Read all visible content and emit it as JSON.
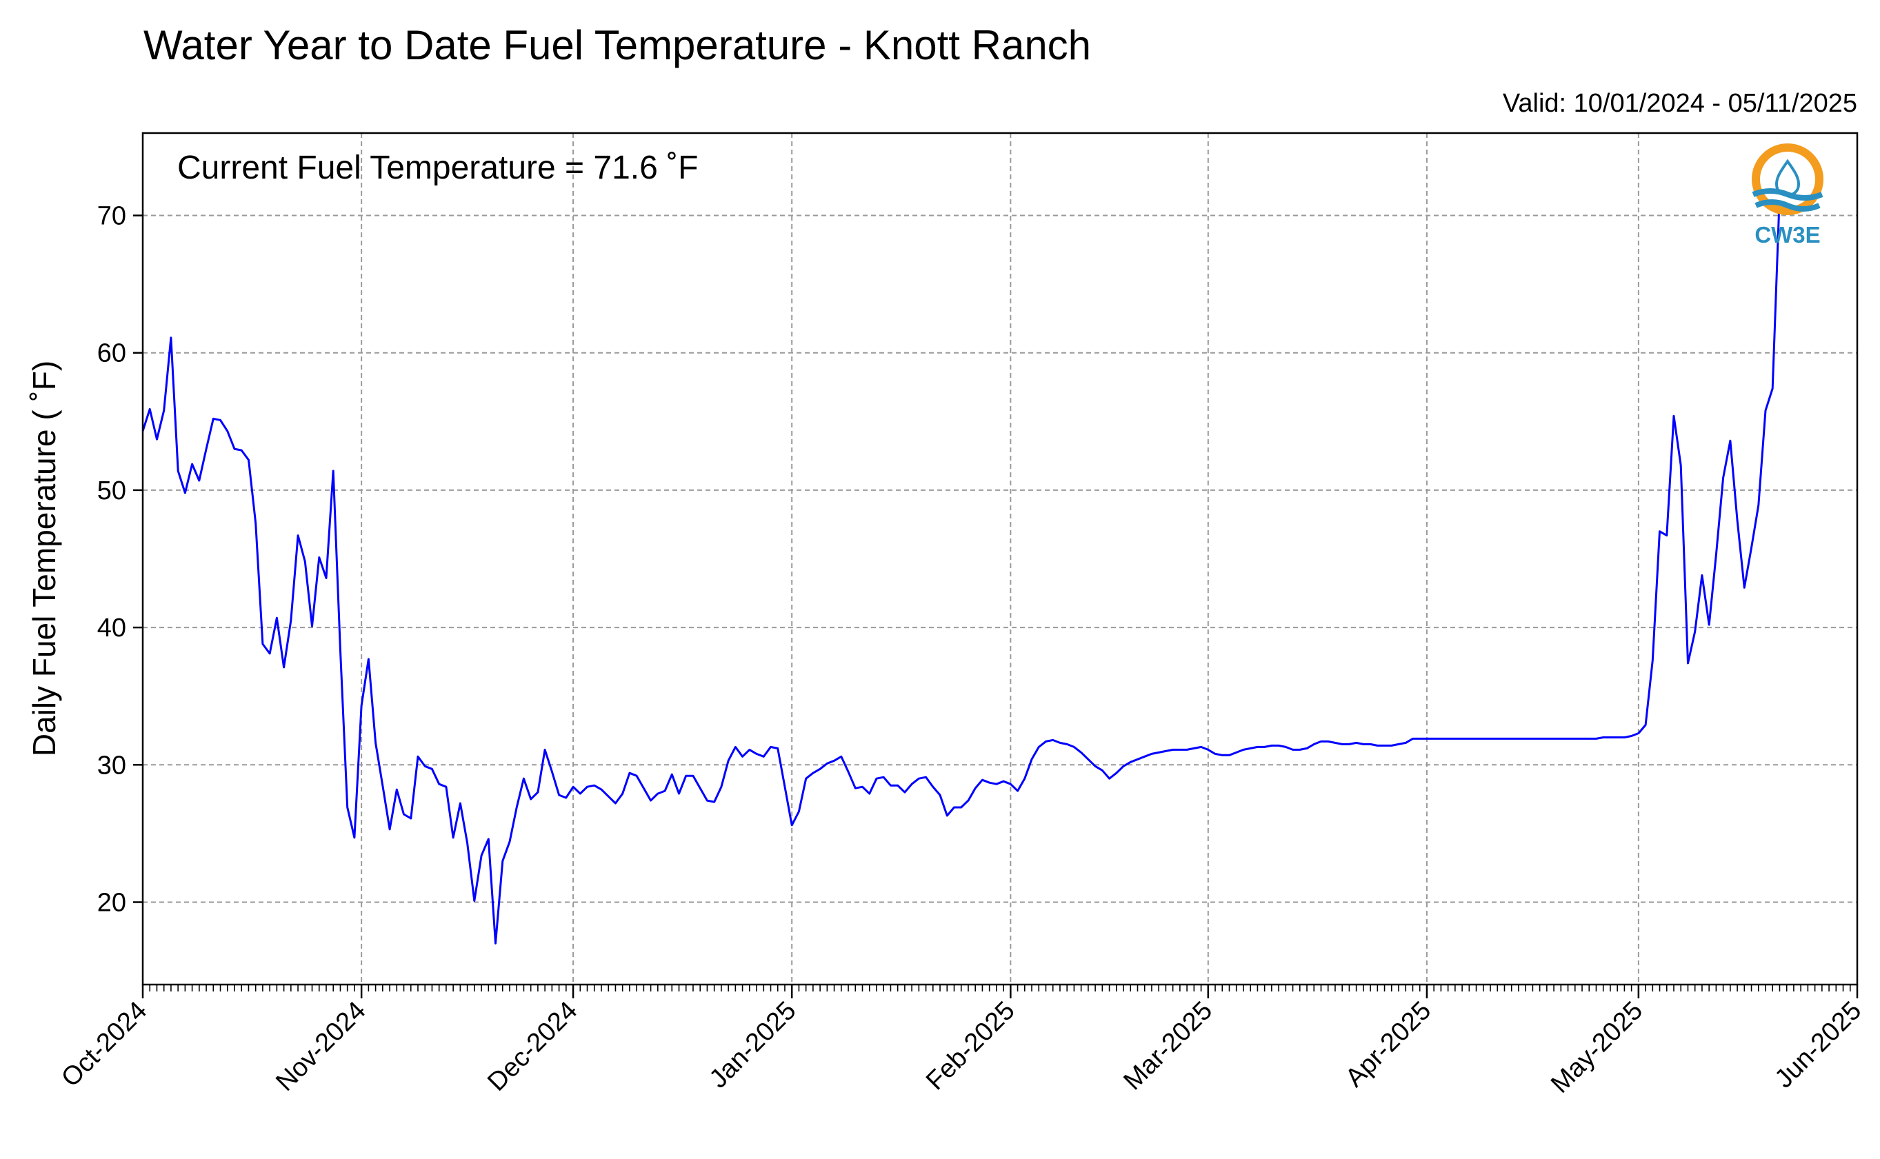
{
  "chart_data": {
    "type": "line",
    "title": "Water Year to Date Fuel Temperature - Knott Ranch",
    "subtitle": "Valid: 10/01/2024 - 05/11/2025",
    "annotation": "Current Fuel Temperature = 71.6  ˚F",
    "xlabel": "",
    "ylabel": "Daily Fuel Temperature ( ˚F)",
    "x_start": "2024-10-01",
    "xlim": [
      "2024-10-01",
      "2025-06-01"
    ],
    "ylim": [
      14,
      76
    ],
    "y_ticks": [
      20,
      30,
      40,
      50,
      60,
      70
    ],
    "x_ticks": [
      {
        "date": "2024-10-01",
        "label": "Oct-2024"
      },
      {
        "date": "2024-11-01",
        "label": "Nov-2024"
      },
      {
        "date": "2024-12-01",
        "label": "Dec-2024"
      },
      {
        "date": "2025-01-01",
        "label": "Jan-2025"
      },
      {
        "date": "2025-02-01",
        "label": "Feb-2025"
      },
      {
        "date": "2025-03-01",
        "label": "Mar-2025"
      },
      {
        "date": "2025-04-01",
        "label": "Apr-2025"
      },
      {
        "date": "2025-05-01",
        "label": "May-2025"
      },
      {
        "date": "2025-06-01",
        "label": "Jun-2025"
      }
    ],
    "grid": true,
    "line_color": "#0000ff",
    "series": [
      {
        "values": [
          54.3,
          55.9,
          53.7,
          55.8,
          61.1,
          51.4,
          49.8,
          51.9,
          50.7,
          53.0,
          55.2,
          55.1,
          54.3,
          53.0,
          52.9,
          52.2,
          47.6,
          38.8,
          38.1,
          40.7,
          37.1,
          40.5,
          46.7,
          44.8,
          40.1,
          45.1,
          43.6,
          51.4,
          38.3,
          26.9,
          24.7,
          34.3,
          37.7,
          31.6,
          28.5,
          25.3,
          28.2,
          26.4,
          26.1,
          30.6,
          29.9,
          29.7,
          28.6,
          28.4,
          24.7,
          27.2,
          24.3,
          20.1,
          23.4,
          24.6,
          17.0,
          23.0,
          24.4,
          26.9,
          29.0,
          27.5,
          28.0,
          31.1,
          29.5,
          27.8,
          27.6,
          28.4,
          27.9,
          28.4,
          28.5,
          28.2,
          27.7,
          27.2,
          27.9,
          29.4,
          29.2,
          28.3,
          27.4,
          27.9,
          28.1,
          29.3,
          27.9,
          29.2,
          29.2,
          28.3,
          27.4,
          27.3,
          28.4,
          30.3,
          31.3,
          30.6,
          31.1,
          30.8,
          30.6,
          31.3,
          31.2,
          28.4,
          25.6,
          26.6,
          29.0,
          29.4,
          29.7,
          30.1,
          30.3,
          30.6,
          29.5,
          28.3,
          28.4,
          27.9,
          29.0,
          29.1,
          28.5,
          28.5,
          28.0,
          28.6,
          29.0,
          29.1,
          28.4,
          27.8,
          26.3,
          26.9,
          26.9,
          27.4,
          28.3,
          28.9,
          28.7,
          28.6,
          28.8,
          28.6,
          28.1,
          29.0,
          30.4,
          31.3,
          31.7,
          31.8,
          31.6,
          31.5,
          31.3,
          30.9,
          30.4,
          29.9,
          29.6,
          29.0,
          29.4,
          29.9,
          30.2,
          30.4,
          30.6,
          30.8,
          30.9,
          31.0,
          31.1,
          31.1,
          31.1,
          31.2,
          31.3,
          31.1,
          30.8,
          30.7,
          30.7,
          30.9,
          31.1,
          31.2,
          31.3,
          31.3,
          31.4,
          31.4,
          31.3,
          31.1,
          31.1,
          31.2,
          31.5,
          31.7,
          31.7,
          31.6,
          31.5,
          31.5,
          31.6,
          31.5,
          31.5,
          31.4,
          31.4,
          31.4,
          31.5,
          31.6,
          31.9,
          31.9,
          31.9,
          31.9,
          31.9,
          31.9,
          31.9,
          31.9,
          31.9,
          31.9,
          31.9,
          31.9,
          31.9,
          31.9,
          31.9,
          31.9,
          31.9,
          31.9,
          31.9,
          31.9,
          31.9,
          31.9,
          31.9,
          31.9,
          31.9,
          31.9,
          31.9,
          32.0,
          32.0,
          32.0,
          32.0,
          32.1,
          32.3,
          32.9,
          37.6,
          47.0,
          46.7,
          55.4,
          51.8,
          37.4,
          39.7,
          43.8,
          40.2,
          45.3,
          50.9,
          53.6,
          47.8,
          42.9,
          45.8,
          48.9,
          55.8,
          57.4,
          71.6
        ]
      }
    ]
  },
  "logo": {
    "text": "CW3E",
    "colors": {
      "ring": "#f39c1e",
      "water": "#2a8fc1"
    }
  }
}
